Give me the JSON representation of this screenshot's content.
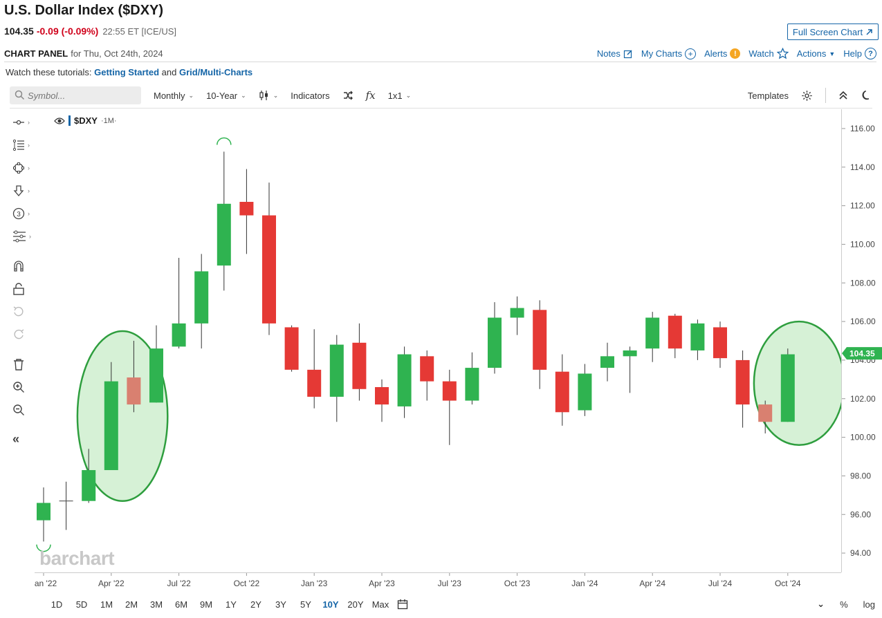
{
  "header": {
    "title": "U.S. Dollar Index ($DXY)",
    "last": "104.35",
    "change": "-0.09 (-0.09%)",
    "time": "22:55 ET [ICE/US]",
    "fullscreen_label": "Full Screen Chart"
  },
  "panel": {
    "label": "CHART PANEL",
    "date": "for Thu, Oct 24th, 2024",
    "links": {
      "notes": "Notes",
      "my_charts": "My Charts",
      "alerts": "Alerts",
      "watch": "Watch",
      "actions": "Actions",
      "help": "Help"
    }
  },
  "tutorials": {
    "prefix": "Watch these tutorials:",
    "link1": "Getting Started",
    "and": "and",
    "link2": "Grid/Multi-Charts"
  },
  "toolbar": {
    "symbol_placeholder": "Symbol...",
    "period": "Monthly",
    "range": "10-Year",
    "indicators": "Indicators",
    "fx": "fx",
    "grid": "1x1",
    "templates": "Templates"
  },
  "legend": {
    "symbol": "$DXY",
    "period": "·1M·"
  },
  "watermark": "barchart",
  "ranges": {
    "items": [
      "1D",
      "5D",
      "1M",
      "2M",
      "3M",
      "6M",
      "9M",
      "1Y",
      "2Y",
      "3Y",
      "5Y",
      "10Y",
      "20Y",
      "Max"
    ],
    "active": "10Y",
    "percent": "%",
    "log": "log"
  },
  "colors": {
    "up": "#2fb350",
    "down": "#e53935",
    "up_light": "#4cc16a",
    "down_light": "#d98070",
    "circle_fill": "#c8ecc8",
    "circle_stroke": "#2e9e3e",
    "link": "#1565a7",
    "price_tag": "#2fb350"
  },
  "chart_data": {
    "type": "candlestick",
    "symbol": "$DXY",
    "interval": "1M",
    "ylim": [
      93,
      117
    ],
    "y_ticks": [
      94,
      96,
      98,
      100,
      102,
      104,
      106,
      108,
      110,
      112,
      114,
      116
    ],
    "y_tick_labels": [
      "94.00",
      "96.00",
      "98.00",
      "100.00",
      "102.00",
      "104.00",
      "106.00",
      "108.00",
      "110.00",
      "112.00",
      "114.00",
      "116.00"
    ],
    "x_ticks": [
      {
        "index": 0,
        "label": "Jan '22"
      },
      {
        "index": 3,
        "label": "Apr '22"
      },
      {
        "index": 6,
        "label": "Jul '22"
      },
      {
        "index": 9,
        "label": "Oct '22"
      },
      {
        "index": 12,
        "label": "Jan '23"
      },
      {
        "index": 15,
        "label": "Apr '23"
      },
      {
        "index": 18,
        "label": "Jul '23"
      },
      {
        "index": 21,
        "label": "Oct '23"
      },
      {
        "index": 24,
        "label": "Jan '24"
      },
      {
        "index": 27,
        "label": "Apr '24"
      },
      {
        "index": 30,
        "label": "Jul '24"
      },
      {
        "index": 33,
        "label": "Oct '24"
      }
    ],
    "last_price": 104.35,
    "last_price_label": "104.35",
    "candles": [
      {
        "date": "2022-01",
        "open": 95.7,
        "high": 97.4,
        "low": 94.6,
        "close": 96.6
      },
      {
        "date": "2022-02",
        "open": 96.7,
        "high": 97.7,
        "low": 95.2,
        "close": 96.7
      },
      {
        "date": "2022-03",
        "open": 96.7,
        "high": 99.4,
        "low": 96.6,
        "close": 98.3
      },
      {
        "date": "2022-04",
        "open": 98.3,
        "high": 103.9,
        "low": 98.3,
        "close": 102.9
      },
      {
        "date": "2022-05",
        "open": 103.1,
        "high": 105.0,
        "low": 101.3,
        "close": 101.7
      },
      {
        "date": "2022-06",
        "open": 101.8,
        "high": 105.8,
        "low": 101.8,
        "close": 104.6
      },
      {
        "date": "2022-07",
        "open": 104.7,
        "high": 109.3,
        "low": 104.6,
        "close": 105.9
      },
      {
        "date": "2022-08",
        "open": 105.9,
        "high": 109.5,
        "low": 104.6,
        "close": 108.6
      },
      {
        "date": "2022-09",
        "open": 108.9,
        "high": 114.8,
        "low": 107.6,
        "close": 112.1
      },
      {
        "date": "2022-10",
        "open": 112.2,
        "high": 113.9,
        "low": 109.5,
        "close": 111.5
      },
      {
        "date": "2022-11",
        "open": 111.5,
        "high": 113.2,
        "low": 105.3,
        "close": 105.9
      },
      {
        "date": "2022-12",
        "open": 105.7,
        "high": 105.8,
        "low": 103.4,
        "close": 103.5
      },
      {
        "date": "2023-01",
        "open": 103.5,
        "high": 105.6,
        "low": 101.5,
        "close": 102.1
      },
      {
        "date": "2023-02",
        "open": 102.1,
        "high": 105.3,
        "low": 100.8,
        "close": 104.8
      },
      {
        "date": "2023-03",
        "open": 104.9,
        "high": 105.9,
        "low": 101.9,
        "close": 102.5
      },
      {
        "date": "2023-04",
        "open": 102.6,
        "high": 103.0,
        "low": 100.8,
        "close": 101.7
      },
      {
        "date": "2023-05",
        "open": 101.6,
        "high": 104.7,
        "low": 101.0,
        "close": 104.3
      },
      {
        "date": "2023-06",
        "open": 104.2,
        "high": 104.5,
        "low": 101.9,
        "close": 102.9
      },
      {
        "date": "2023-07",
        "open": 102.9,
        "high": 103.5,
        "low": 99.6,
        "close": 101.9
      },
      {
        "date": "2023-08",
        "open": 101.9,
        "high": 104.4,
        "low": 101.7,
        "close": 103.6
      },
      {
        "date": "2023-09",
        "open": 103.6,
        "high": 107.0,
        "low": 103.3,
        "close": 106.2
      },
      {
        "date": "2023-10",
        "open": 106.2,
        "high": 107.3,
        "low": 105.3,
        "close": 106.7
      },
      {
        "date": "2023-11",
        "open": 106.6,
        "high": 107.1,
        "low": 102.5,
        "close": 103.5
      },
      {
        "date": "2023-12",
        "open": 103.4,
        "high": 104.3,
        "low": 100.6,
        "close": 101.3
      },
      {
        "date": "2024-01",
        "open": 101.4,
        "high": 103.8,
        "low": 101.1,
        "close": 103.3
      },
      {
        "date": "2024-02",
        "open": 103.6,
        "high": 104.9,
        "low": 102.9,
        "close": 104.2
      },
      {
        "date": "2024-03",
        "open": 104.2,
        "high": 104.7,
        "low": 102.3,
        "close": 104.5
      },
      {
        "date": "2024-04",
        "open": 104.6,
        "high": 106.5,
        "low": 103.9,
        "close": 106.2
      },
      {
        "date": "2024-05",
        "open": 106.3,
        "high": 106.4,
        "low": 104.1,
        "close": 104.6
      },
      {
        "date": "2024-06",
        "open": 104.5,
        "high": 106.1,
        "low": 104.0,
        "close": 105.9
      },
      {
        "date": "2024-07",
        "open": 105.7,
        "high": 106.0,
        "low": 103.6,
        "close": 104.1
      },
      {
        "date": "2024-08",
        "open": 104.0,
        "high": 104.5,
        "low": 100.5,
        "close": 101.7
      },
      {
        "date": "2024-09",
        "open": 101.7,
        "high": 101.9,
        "low": 100.2,
        "close": 100.8
      },
      {
        "date": "2024-10",
        "open": 100.8,
        "high": 104.6,
        "low": 100.8,
        "close": 104.3
      }
    ],
    "highlight_indices": [
      4,
      32
    ],
    "highlight_circles": [
      {
        "center_index": 3.5,
        "center_value": 101.1,
        "span_indices": 4.0,
        "span_value": 8.8
      },
      {
        "center_index": 33.5,
        "center_value": 102.8,
        "span_indices": 4.0,
        "span_value": 6.4
      }
    ],
    "arc_markers": [
      {
        "index": 8,
        "value": 115.3,
        "direction": "up"
      },
      {
        "index": 0,
        "value": 94.3,
        "direction": "down"
      }
    ]
  }
}
